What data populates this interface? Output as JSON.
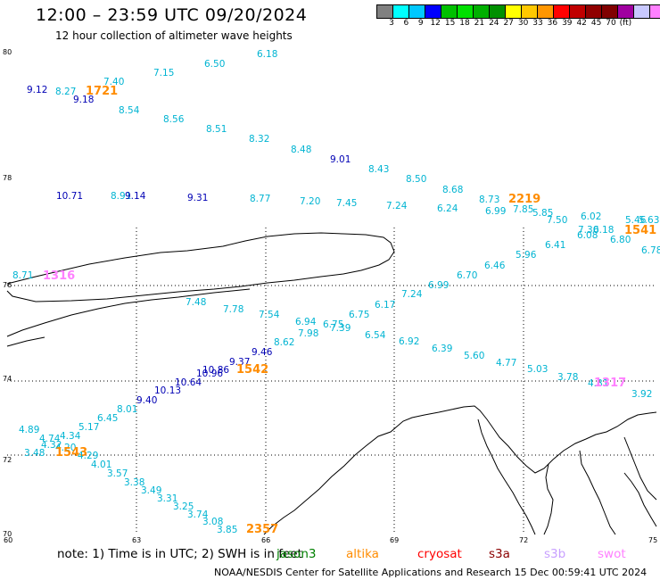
{
  "title": "12:00 – 23:59 UTC 09/20/2024",
  "subtitle": "12 hour collection of altimeter wave heights",
  "colorbar": {
    "colors": [
      "#808080",
      "#00ffff",
      "#00c8ff",
      "#0000ff",
      "#00c000",
      "#00e000",
      "#00b000",
      "#009000",
      "#ffff00",
      "#ffc800",
      "#ff9600",
      "#ff0000",
      "#c00000",
      "#900000",
      "#800000",
      "#a000a0",
      "#c8c8ff",
      "#ff80ff",
      "#000000"
    ],
    "labels": [
      "3",
      "6",
      "9",
      "12",
      "15",
      "18",
      "21",
      "24",
      "27",
      "30",
      "33",
      "36",
      "39",
      "42",
      "45",
      "70",
      "(ft)"
    ]
  },
  "lat_labels": [
    "80",
    "78",
    "76",
    "74",
    "72",
    "70"
  ],
  "lon_labels": [
    "60",
    "63",
    "66",
    "69",
    "72",
    "75"
  ],
  "legend": {
    "note": "note:  1) Time is in UTC; 2) SWH is in feet",
    "missions": [
      {
        "name": "jason3",
        "color": "#008000"
      },
      {
        "name": "altika",
        "color": "#ff8c00"
      },
      {
        "name": "cryosat",
        "color": "#ff0000"
      },
      {
        "name": "s3a",
        "color": "#8b0000"
      },
      {
        "name": "s3b",
        "color": "#c8a0ff"
      },
      {
        "name": "swot",
        "color": "#ff80ff"
      }
    ]
  },
  "credit": "NOAA/NESDIS Center for Satellite Applications and Research     15 Dec 00:59:41 UTC 2024",
  "observations": [
    {
      "v": "6.18",
      "c": "#00b4d2"
    },
    {
      "v": "6.50",
      "c": "#00b4d2"
    },
    {
      "v": "7.15",
      "c": "#00b4d2"
    },
    {
      "v": "7.40",
      "c": "#00b4d2"
    },
    {
      "v": "9.12",
      "c": "#0000b4"
    },
    {
      "v": "8.27",
      "c": "#00b4d2"
    },
    {
      "v": "1721",
      "c": "#ff8c00",
      "big": true
    },
    {
      "v": "9.18",
      "c": "#0000b4"
    },
    {
      "v": "8.54",
      "c": "#00b4d2"
    },
    {
      "v": "8.56",
      "c": "#00b4d2"
    },
    {
      "v": "8.51",
      "c": "#00b4d2"
    },
    {
      "v": "8.32",
      "c": "#00b4d2"
    },
    {
      "v": "8.48",
      "c": "#00b4d2"
    },
    {
      "v": "9.01",
      "c": "#0000b4"
    },
    {
      "v": "8.43",
      "c": "#00b4d2"
    },
    {
      "v": "8.50",
      "c": "#00b4d2"
    },
    {
      "v": "8.68",
      "c": "#00b4d2"
    },
    {
      "v": "8.73",
      "c": "#00b4d2"
    },
    {
      "v": "2219",
      "c": "#ff8c00",
      "big": true
    },
    {
      "v": "6.99",
      "c": "#00b4d2"
    },
    {
      "v": "7.85",
      "c": "#00b4d2"
    },
    {
      "v": "5.85",
      "c": "#00b4d2"
    },
    {
      "v": "7.50",
      "c": "#00b4d2"
    },
    {
      "v": "6.02",
      "c": "#00b4d2"
    },
    {
      "v": "5.46",
      "c": "#00b4d2"
    },
    {
      "v": "5.63",
      "c": "#00b4d2"
    },
    {
      "v": "7.30",
      "c": "#00b4d2"
    },
    {
      "v": "6.18",
      "c": "#00b4d2"
    },
    {
      "v": "6.08",
      "c": "#00b4d2"
    },
    {
      "v": "1541",
      "c": "#ff8c00",
      "big": true
    },
    {
      "v": "6.80",
      "c": "#00b4d2"
    },
    {
      "v": "6.41",
      "c": "#00b4d2"
    },
    {
      "v": "6.78",
      "c": "#00b4d2"
    },
    {
      "v": "5.96",
      "c": "#00b4d2"
    },
    {
      "v": "10.71",
      "c": "#0000b4"
    },
    {
      "v": "8.91",
      "c": "#00b4d2"
    },
    {
      "v": "9.14",
      "c": "#0000b4"
    },
    {
      "v": "9.31",
      "c": "#0000b4"
    },
    {
      "v": "8.77",
      "c": "#00b4d2"
    },
    {
      "v": "7.20",
      "c": "#00b4d2"
    },
    {
      "v": "7.45",
      "c": "#00b4d2"
    },
    {
      "v": "7.24",
      "c": "#00b4d2"
    },
    {
      "v": "6.24",
      "c": "#00b4d2"
    },
    {
      "v": "6.46",
      "c": "#00b4d2"
    },
    {
      "v": "6.70",
      "c": "#00b4d2"
    },
    {
      "v": "6.99",
      "c": "#00b4d2"
    },
    {
      "v": "7.24",
      "c": "#00b4d2"
    },
    {
      "v": "6.17",
      "c": "#00b4d2"
    },
    {
      "v": "8.71",
      "c": "#00b4d2"
    },
    {
      "v": "1316",
      "c": "#ff80ff",
      "big": true
    },
    {
      "v": "7.48",
      "c": "#00b4d2"
    },
    {
      "v": "7.78",
      "c": "#00b4d2"
    },
    {
      "v": "7.54",
      "c": "#00b4d2"
    },
    {
      "v": "6.94",
      "c": "#00b4d2"
    },
    {
      "v": "6.75",
      "c": "#00b4d2"
    },
    {
      "v": "7.39",
      "c": "#00b4d2"
    },
    {
      "v": "6.75",
      "c": "#00b4d2"
    },
    {
      "v": "7.98",
      "c": "#00b4d2"
    },
    {
      "v": "8.62",
      "c": "#00b4d2"
    },
    {
      "v": "6.54",
      "c": "#00b4d2"
    },
    {
      "v": "6.92",
      "c": "#00b4d2"
    },
    {
      "v": "6.39",
      "c": "#00b4d2"
    },
    {
      "v": "5.60",
      "c": "#00b4d2"
    },
    {
      "v": "4.77",
      "c": "#00b4d2"
    },
    {
      "v": "5.03",
      "c": "#00b4d2"
    },
    {
      "v": "3.78",
      "c": "#00b4d2"
    },
    {
      "v": "4.81",
      "c": "#00b4d2"
    },
    {
      "v": "1317",
      "c": "#ff80ff",
      "big": true
    },
    {
      "v": "3.92",
      "c": "#00b4d2"
    },
    {
      "v": "9.46",
      "c": "#0000b4"
    },
    {
      "v": "9.37",
      "c": "#0000b4"
    },
    {
      "v": "10.86",
      "c": "#0000b4"
    },
    {
      "v": "10.96",
      "c": "#0000b4"
    },
    {
      "v": "1542",
      "c": "#ff8c00",
      "big": true
    },
    {
      "v": "10.64",
      "c": "#0000b4"
    },
    {
      "v": "10.13",
      "c": "#0000b4"
    },
    {
      "v": "9.40",
      "c": "#0000b4"
    },
    {
      "v": "8.01",
      "c": "#00b4d2"
    },
    {
      "v": "6.45",
      "c": "#00b4d2"
    },
    {
      "v": "5.17",
      "c": "#00b4d2"
    },
    {
      "v": "4.89",
      "c": "#00b4d2"
    },
    {
      "v": "4.74",
      "c": "#00b4d2"
    },
    {
      "v": "4.34",
      "c": "#00b4d2"
    },
    {
      "v": "4.32",
      "c": "#00b4d2"
    },
    {
      "v": "4.20",
      "c": "#00b4d2"
    },
    {
      "v": "3.48",
      "c": "#00b4d2"
    },
    {
      "v": "1543",
      "c": "#ff8c00",
      "big": true
    },
    {
      "v": "4.29",
      "c": "#00b4d2"
    },
    {
      "v": "4.01",
      "c": "#00b4d2"
    },
    {
      "v": "3.57",
      "c": "#00b4d2"
    },
    {
      "v": "3.38",
      "c": "#00b4d2"
    },
    {
      "v": "3.49",
      "c": "#00b4d2"
    },
    {
      "v": "3.31",
      "c": "#00b4d2"
    },
    {
      "v": "3.25",
      "c": "#00b4d2"
    },
    {
      "v": "3.74",
      "c": "#00b4d2"
    },
    {
      "v": "3.08",
      "c": "#00b4d2"
    },
    {
      "v": "3.85",
      "c": "#00b4d2"
    },
    {
      "v": "2357",
      "c": "#ff8c00",
      "big": true
    }
  ]
}
